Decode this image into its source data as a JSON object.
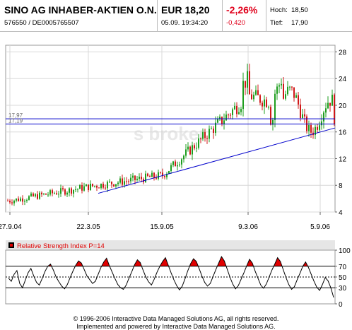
{
  "header": {
    "name": "SINO AG INHABER-AKTIEN O.N.",
    "id_line": "576550  /  DE0005765507",
    "price": "EUR 18,20",
    "datetime": "05.09.  19:34:20",
    "change_pct": "-2,26%",
    "change_abs": "-0,420",
    "high_label": "Hoch:",
    "high_value": "18,50",
    "low_label": "Tief:",
    "low_value": "17,90"
  },
  "colors": {
    "up": "#1e9e1e",
    "down": "#d01818",
    "line": "#0000cc",
    "negative": "#e0001b",
    "rsi_fill": "#e00000"
  },
  "chart_data": [
    {
      "type": "candlestick",
      "x": [
        "27.9.04",
        "22.3.05",
        "15.9.05",
        "9.3.06",
        "5.9.06"
      ],
      "x_ticks": [
        "27.9.04",
        "22.3.05",
        "15.9.05",
        "9.3.06",
        "5.9.06"
      ],
      "y_ticks": [
        "4",
        "8",
        "12",
        "16",
        "20",
        "24",
        "28"
      ],
      "ylim": [
        4,
        29
      ],
      "watermark": "s broker",
      "close_trend": {
        "dates": [
          "27.9.04",
          "22.3.05",
          "15.9.05",
          "9.3.06",
          "5.9.06"
        ],
        "values": [
          5.7,
          7.8,
          9.5,
          21.5,
          18.2
        ]
      },
      "levels": [
        {
          "label": "17,97",
          "value": 17.97
        },
        {
          "label": "17,19",
          "value": 17.19
        }
      ],
      "trendline": {
        "from": [
          "22.3.05",
          6.8
        ],
        "to": [
          "5.9.06",
          16.6
        ]
      }
    },
    {
      "type": "line",
      "title": "Relative Strength Index  P=14",
      "y_ticks": [
        "0",
        "30",
        "50",
        "70",
        "100"
      ],
      "ylim": [
        0,
        100
      ],
      "levels": [
        30,
        50,
        70
      ],
      "values": [
        48,
        42,
        55,
        62,
        38,
        30,
        44,
        58,
        66,
        52,
        40,
        35,
        47,
        60,
        70,
        74,
        63,
        50,
        41,
        33,
        28,
        36,
        49,
        61,
        72,
        80,
        76,
        64,
        52,
        45,
        38,
        42,
        55,
        68,
        78,
        85,
        71,
        59,
        47,
        36,
        30,
        27,
        35,
        48,
        60,
        73,
        82,
        77,
        63,
        50,
        41,
        35,
        46,
        59,
        70,
        79,
        86,
        72,
        58,
        45,
        34,
        26,
        33,
        47,
        62,
        75,
        84,
        79,
        66,
        52,
        40,
        33,
        38,
        51,
        64,
        76,
        88,
        80,
        65,
        50,
        37,
        28,
        34,
        46,
        58,
        71,
        83,
        76,
        61,
        48,
        35,
        29,
        37,
        50,
        63,
        74,
        86,
        79,
        64,
        49,
        36,
        27,
        32,
        45,
        57,
        70,
        78,
        68,
        55,
        42,
        31,
        25,
        36,
        49,
        43,
        30,
        12
      ]
    }
  ],
  "footer": {
    "line1": "© 1996-2006 Interactive Data Managed Solutions AG, all rights reserved.",
    "line2": "Implemented and powered by Interactive Data Managed Solutions AG."
  }
}
